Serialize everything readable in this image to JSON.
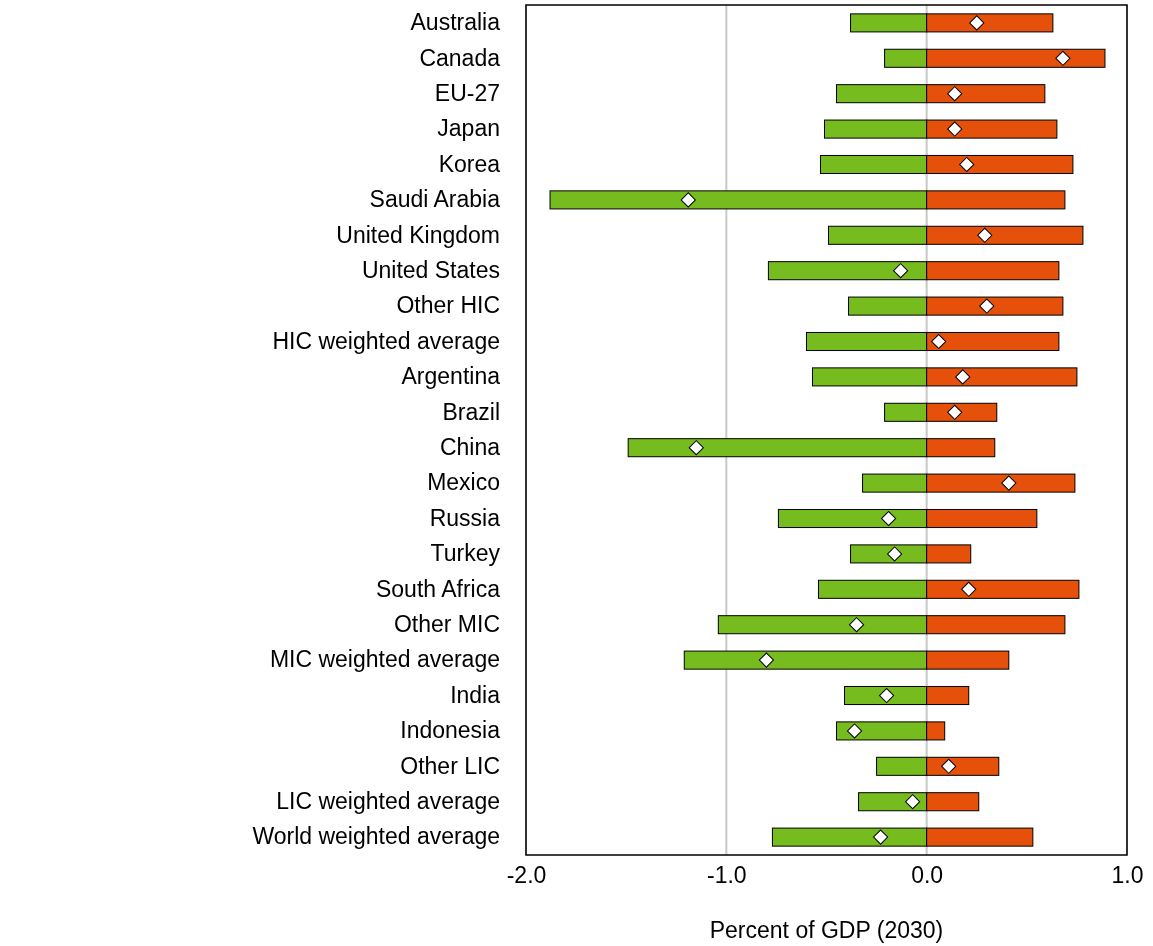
{
  "chart_data": {
    "type": "bar",
    "orientation": "horizontal",
    "stacked": true,
    "xlabel": "Percent of GDP (2030)",
    "categories": [
      "Australia",
      "Canada",
      "EU-27",
      "Japan",
      "Korea",
      "Saudi Arabia",
      "United Kingdom",
      "United States",
      "Other HIC",
      "HIC weighted average",
      "Argentina",
      "Brazil",
      "China",
      "Mexico",
      "Russia",
      "Turkey",
      "South Africa",
      "Other MIC",
      "MIC weighted average",
      "India",
      "Indonesia",
      "Other LIC",
      "LIC weighted average",
      "World weighted average"
    ],
    "xlim": [
      -2,
      1
    ],
    "xticks": [
      {
        "value": -2,
        "label": "-2.0"
      },
      {
        "value": -1,
        "label": "-1.0"
      },
      {
        "value": 0,
        "label": "0.0"
      },
      {
        "value": 1,
        "label": "1.0"
      }
    ],
    "grid": "x",
    "series": [
      {
        "color": "#77bc1f",
        "values": [
          -0.38,
          -0.21,
          -0.45,
          -0.51,
          -0.53,
          -1.88,
          -0.49,
          -0.79,
          -0.39,
          -0.6,
          -0.57,
          -0.21,
          -1.49,
          -0.32,
          -0.74,
          -0.38,
          -0.54,
          -1.04,
          -1.21,
          -0.41,
          -0.45,
          -0.25,
          -0.34,
          -0.77
        ]
      },
      {
        "color": "#e5500a",
        "values": [
          0.63,
          0.89,
          0.59,
          0.65,
          0.73,
          0.69,
          0.78,
          0.66,
          0.68,
          0.66,
          0.75,
          0.35,
          0.34,
          0.74,
          0.55,
          0.22,
          0.76,
          0.69,
          0.41,
          0.21,
          0.09,
          0.36,
          0.26,
          0.53
        ]
      },
      {
        "type": "scatter",
        "marker": "diamond",
        "color": "#ffffff",
        "values": [
          0.25,
          0.68,
          0.14,
          0.14,
          0.2,
          -1.19,
          0.29,
          -0.13,
          0.3,
          0.06,
          0.18,
          0.14,
          -1.15,
          0.41,
          -0.19,
          -0.16,
          0.21,
          -0.35,
          -0.8,
          -0.2,
          -0.36,
          0.11,
          -0.07,
          -0.23
        ]
      }
    ]
  }
}
